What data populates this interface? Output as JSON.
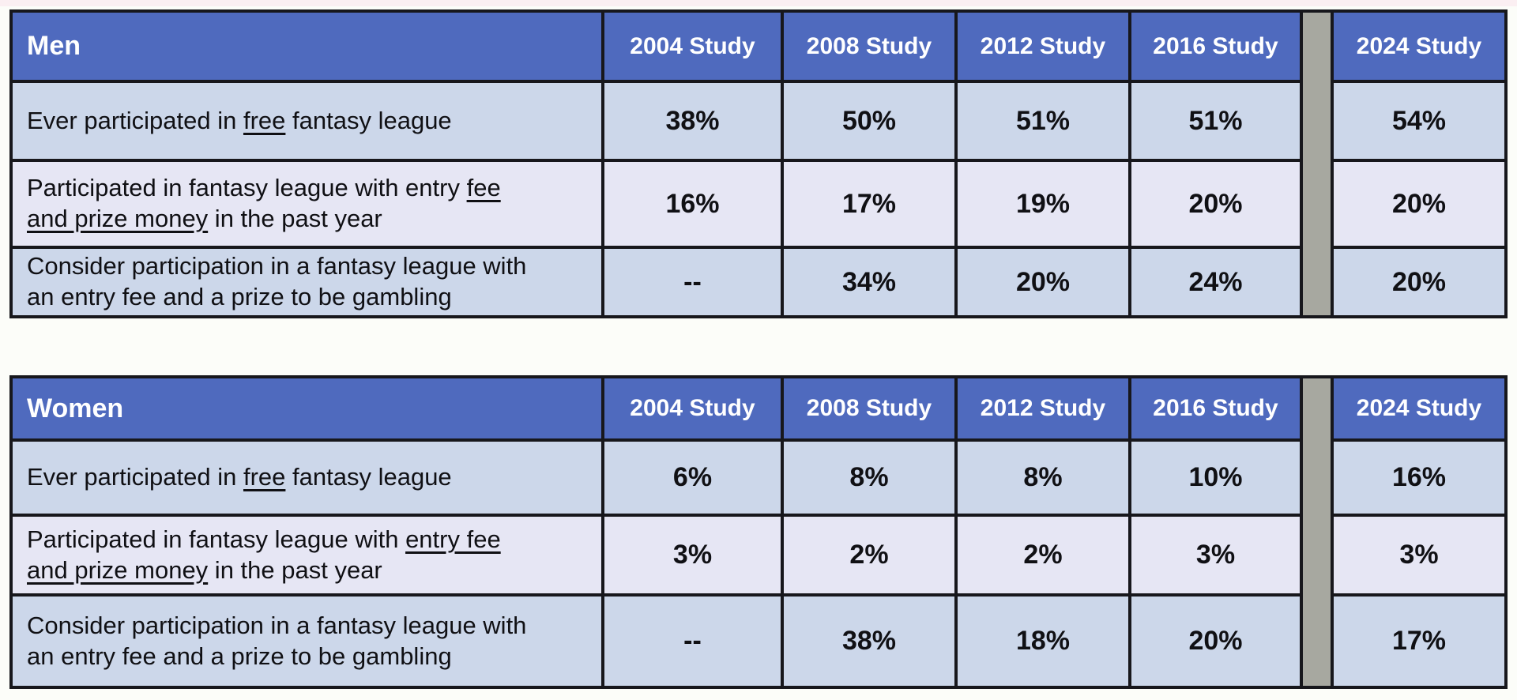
{
  "colors": {
    "header_bg": "#4f6abe",
    "row_odd_bg": "#ccd7ea",
    "row_even_bg": "#e6e6f4",
    "border": "#17171c",
    "separator": "#a7a8a0",
    "header_text": "#ffffff",
    "body_text": "#101014",
    "page_bg": "#fcfdf9",
    "top_strip": "#fbeff2"
  },
  "tables": {
    "men": {
      "title": "Men",
      "columns": [
        "2004 Study",
        "2008 Study",
        "2012 Study",
        "2016 Study",
        "2024 Study"
      ],
      "rows": [
        {
          "label_parts": [
            {
              "t": "Ever participated in ",
              "u": false
            },
            {
              "t": "free",
              "u": true
            },
            {
              "t": " fantasy league",
              "u": false
            }
          ],
          "values": [
            "38%",
            "50%",
            "51%",
            "51%",
            "54%"
          ]
        },
        {
          "label_parts": [
            {
              "t": "Participated in fantasy league with entry ",
              "u": false
            },
            {
              "t": "fee and prize money",
              "u": true
            },
            {
              "t": " in the past year",
              "u": false
            }
          ],
          "values": [
            "16%",
            "17%",
            "19%",
            "20%",
            "20%"
          ]
        },
        {
          "label_parts": [
            {
              "t": "Consider participation in a fantasy league with an entry fee and a prize to be gambling",
              "u": false
            }
          ],
          "values": [
            "--",
            "34%",
            "20%",
            "24%",
            "20%"
          ]
        }
      ]
    },
    "women": {
      "title": "Women",
      "columns": [
        "2004 Study",
        "2008 Study",
        "2012 Study",
        "2016 Study",
        "2024 Study"
      ],
      "rows": [
        {
          "label_parts": [
            {
              "t": "Ever participated in ",
              "u": false
            },
            {
              "t": "free",
              "u": true
            },
            {
              "t": " fantasy league",
              "u": false
            }
          ],
          "values": [
            "6%",
            "8%",
            "8%",
            "10%",
            "16%"
          ]
        },
        {
          "label_parts": [
            {
              "t": "Participated in fantasy league with ",
              "u": false
            },
            {
              "t": "entry fee and prize money",
              "u": true
            },
            {
              "t": " in the past year",
              "u": false
            }
          ],
          "values": [
            "3%",
            "2%",
            "2%",
            "3%",
            "3%"
          ]
        },
        {
          "label_parts": [
            {
              "t": "Consider participation in a fantasy league with an entry fee and a prize to be gambling",
              "u": false
            }
          ],
          "values": [
            "--",
            "38%",
            "18%",
            "20%",
            "17%"
          ]
        }
      ]
    }
  },
  "chart_data": [
    {
      "type": "table",
      "title": "Men",
      "columns": [
        "",
        "2004 Study",
        "2008 Study",
        "2012 Study",
        "2016 Study",
        "2024 Study"
      ],
      "rows": [
        [
          "Ever participated in free fantasy league",
          "38%",
          "50%",
          "51%",
          "51%",
          "54%"
        ],
        [
          "Participated in fantasy league with entry fee and prize money in the past year",
          "16%",
          "17%",
          "19%",
          "20%",
          "20%"
        ],
        [
          "Consider participation in a fantasy league with an entry fee and a prize to be gambling",
          "--",
          "34%",
          "20%",
          "24%",
          "20%"
        ]
      ]
    },
    {
      "type": "table",
      "title": "Women",
      "columns": [
        "",
        "2004 Study",
        "2008 Study",
        "2012 Study",
        "2016 Study",
        "2024 Study"
      ],
      "rows": [
        [
          "Ever participated in free fantasy league",
          "6%",
          "8%",
          "8%",
          "10%",
          "16%"
        ],
        [
          "Participated in fantasy league with entry fee and prize money in the past year",
          "3%",
          "2%",
          "2%",
          "3%",
          "3%"
        ],
        [
          "Consider participation in a fantasy league with an entry fee and a prize to be gambling",
          "--",
          "38%",
          "18%",
          "20%",
          "17%"
        ]
      ]
    }
  ]
}
